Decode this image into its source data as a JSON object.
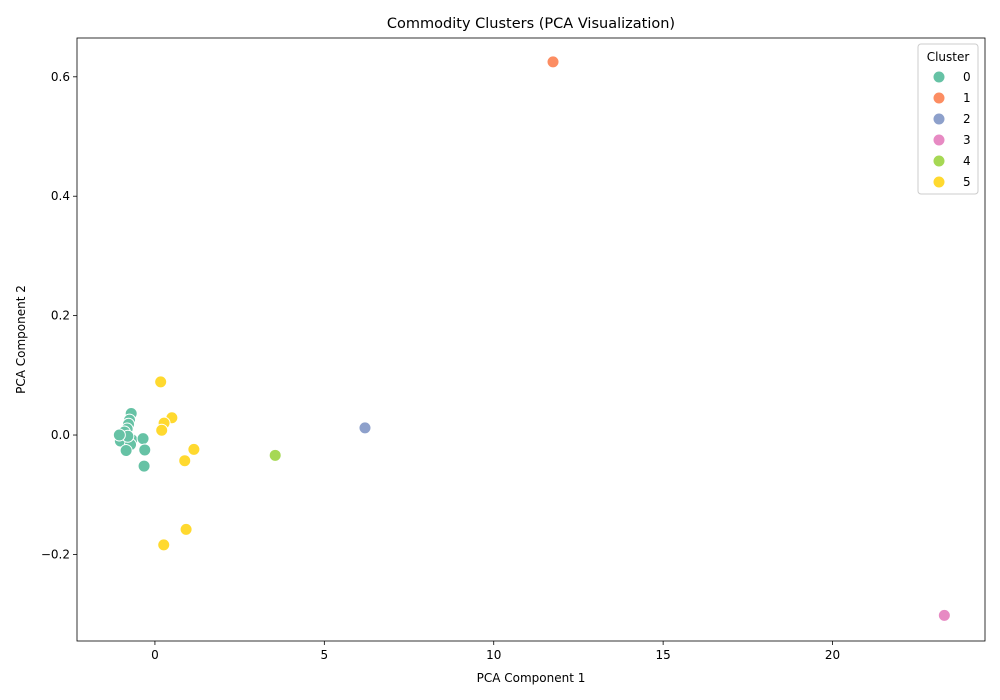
{
  "chart_data": {
    "type": "scatter",
    "title": "Commodity Clusters (PCA Visualization)",
    "xlabel": "PCA Component 1",
    "ylabel": "PCA Component 2",
    "xlim": [
      -2.3,
      24.5
    ],
    "ylim": [
      -0.345,
      0.665
    ],
    "xticks": [
      0,
      5,
      10,
      15,
      20
    ],
    "yticks": [
      -0.2,
      0.0,
      0.2,
      0.4,
      0.6
    ],
    "xtick_labels": [
      "0",
      "5",
      "10",
      "15",
      "20"
    ],
    "ytick_labels": [
      "−0.2",
      "0.0",
      "0.2",
      "0.4",
      "0.6"
    ],
    "grid": false,
    "legend": {
      "title": "Cluster",
      "placement": "top-right"
    },
    "series": [
      {
        "name": "0",
        "color": "#66c2a5",
        "points": [
          {
            "x": -0.7,
            "y": 0.036
          },
          {
            "x": -0.75,
            "y": 0.025
          },
          {
            "x": -0.78,
            "y": 0.018
          },
          {
            "x": -0.82,
            "y": 0.01
          },
          {
            "x": -0.9,
            "y": 0.005
          },
          {
            "x": -0.95,
            "y": -0.005
          },
          {
            "x": -1.02,
            "y": -0.01
          },
          {
            "x": -0.68,
            "y": -0.008
          },
          {
            "x": -0.72,
            "y": -0.016
          },
          {
            "x": -0.8,
            "y": -0.002
          },
          {
            "x": -0.85,
            "y": -0.026
          },
          {
            "x": -0.35,
            "y": -0.006
          },
          {
            "x": -0.3,
            "y": -0.025
          },
          {
            "x": -0.32,
            "y": -0.052
          },
          {
            "x": -1.05,
            "y": 0.0
          }
        ]
      },
      {
        "name": "1",
        "color": "#fc8d62",
        "points": [
          {
            "x": 11.75,
            "y": 0.625
          }
        ]
      },
      {
        "name": "2",
        "color": "#8da0cb",
        "points": [
          {
            "x": 6.2,
            "y": 0.012
          }
        ]
      },
      {
        "name": "3",
        "color": "#e78ac3",
        "points": [
          {
            "x": 23.3,
            "y": -0.302
          }
        ]
      },
      {
        "name": "4",
        "color": "#a6d854",
        "points": [
          {
            "x": 3.55,
            "y": -0.034
          }
        ]
      },
      {
        "name": "5",
        "color": "#ffd92f",
        "points": [
          {
            "x": 0.17,
            "y": 0.089
          },
          {
            "x": 0.5,
            "y": 0.029
          },
          {
            "x": 0.27,
            "y": 0.02
          },
          {
            "x": 0.2,
            "y": 0.008
          },
          {
            "x": 1.15,
            "y": -0.024
          },
          {
            "x": 0.88,
            "y": -0.043
          },
          {
            "x": 0.92,
            "y": -0.158
          },
          {
            "x": 0.26,
            "y": -0.184
          }
        ]
      }
    ]
  }
}
